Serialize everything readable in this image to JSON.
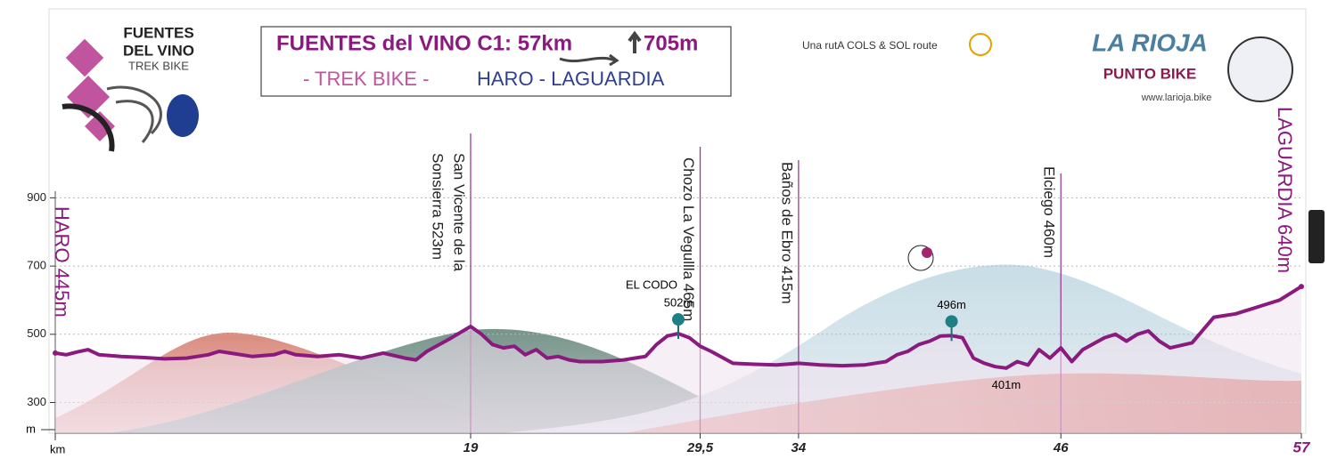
{
  "chart_data": {
    "type": "line",
    "title": "FUENTES del VINO C1: 57km",
    "climb": "705m",
    "subtitle": "- TREK BIKE -",
    "route": "HARO - LAGUARDIA",
    "x_label": "km",
    "y_label": "m",
    "xlim": [
      0,
      57
    ],
    "ylim": [
      210,
      1480
    ],
    "xticks": [
      19,
      {
        "value": 29.5,
        "label": "29,5"
      },
      34,
      46,
      57
    ],
    "yticks": [
      300,
      500,
      700,
      900
    ],
    "grid": true,
    "series": [
      {
        "name": "Elevation",
        "color": "#8b1a7e",
        "x": [
          0,
          0.5,
          1,
          1.5,
          2,
          3,
          4,
          5,
          6,
          7,
          7.5,
          8,
          9,
          10,
          10.5,
          11,
          12,
          13,
          14,
          15,
          16,
          16.5,
          17,
          18,
          19,
          19.5,
          20,
          20.5,
          21,
          21.5,
          22,
          22.5,
          23,
          23.5,
          24,
          25,
          26,
          26.5,
          27,
          27.5,
          28,
          28.5,
          29,
          29.5,
          30,
          31,
          32,
          33,
          34,
          35,
          36,
          37,
          38,
          38.5,
          39,
          39.5,
          40,
          40.5,
          41,
          41.5,
          42,
          42.5,
          43,
          43.5,
          44,
          44.5,
          45,
          45.5,
          46,
          46.5,
          47,
          48,
          48.5,
          49,
          49.5,
          50,
          50.5,
          51,
          52,
          53,
          54,
          55,
          56,
          57
        ],
        "values": [
          445,
          440,
          448,
          455,
          440,
          435,
          432,
          428,
          430,
          440,
          450,
          445,
          435,
          440,
          450,
          440,
          435,
          440,
          430,
          445,
          430,
          425,
          450,
          485,
          523,
          500,
          470,
          460,
          465,
          440,
          455,
          430,
          435,
          425,
          420,
          420,
          425,
          430,
          435,
          470,
          495,
          502,
          490,
          465,
          450,
          415,
          412,
          410,
          415,
          410,
          408,
          410,
          420,
          440,
          450,
          470,
          480,
          495,
          496,
          490,
          430,
          415,
          405,
          401,
          420,
          410,
          455,
          430,
          460,
          420,
          455,
          490,
          500,
          480,
          500,
          510,
          480,
          460,
          475,
          550,
          560,
          580,
          600,
          640
        ]
      }
    ],
    "endpoints": [
      {
        "label": "HARO 445m",
        "km": 0,
        "elev": 445
      },
      {
        "label": "LAGUARDIA 640m",
        "km": 57,
        "elev": 640
      }
    ],
    "waypoints": [
      {
        "lines": [
          "San Vicente de la",
          "Sonsierra 523m"
        ],
        "km": 19,
        "elev": 523
      },
      {
        "lines": [
          "Chozo La Vegullla 465m"
        ],
        "km": 29.5,
        "elev": 465
      },
      {
        "lines": [
          "Baños de Ebro 415m"
        ],
        "km": 34,
        "elev": 415
      },
      {
        "lines": [
          "Elciego 460m"
        ],
        "km": 46,
        "elev": 460
      }
    ],
    "annotations": [
      {
        "name": "EL CODO",
        "label": "502m",
        "km": 28.5,
        "elev": 502
      },
      {
        "label": "496m",
        "km": 41,
        "elev": 496
      },
      {
        "label": "401m",
        "km": 43.5,
        "elev": 401
      }
    ]
  },
  "branding": {
    "logo": [
      "FUENTES",
      "DEL VINO",
      "TREK BIKE"
    ],
    "route_brand": "Una rutA COLS & SOL route",
    "region": "LA RIOJA",
    "region_sub": "PUNTO BIKE",
    "url": "www.larioja.bike"
  }
}
